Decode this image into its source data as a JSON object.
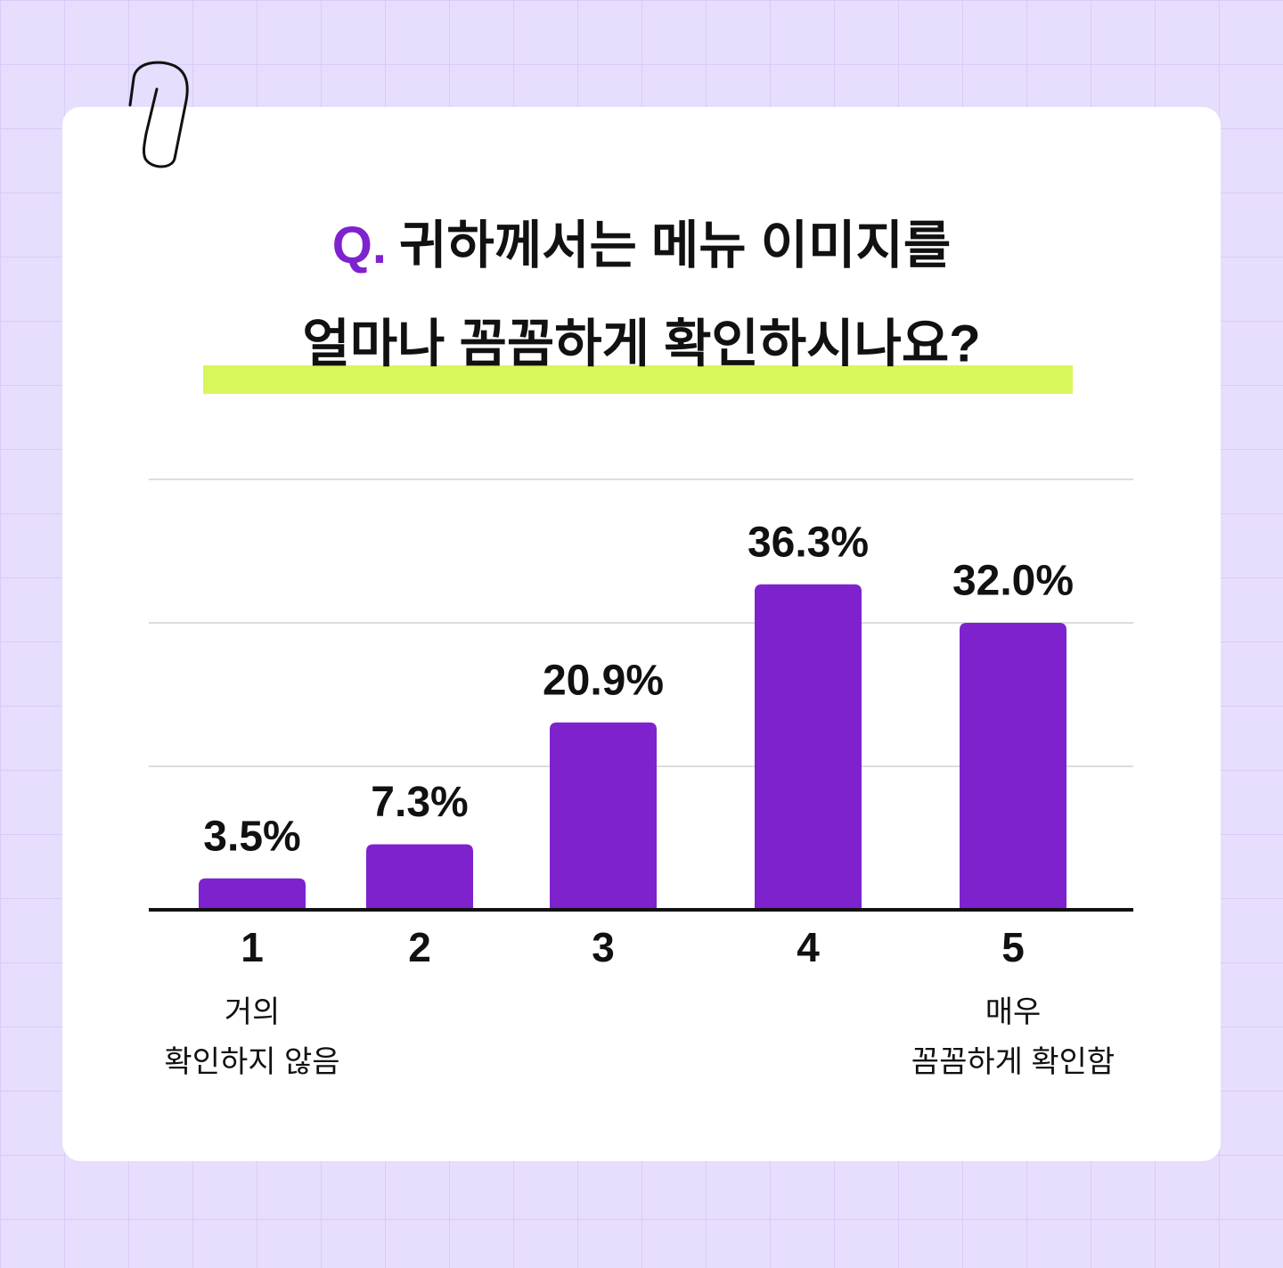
{
  "chart_data": {
    "type": "bar",
    "title_marker": "Q.",
    "title": [
      "귀하께서는 메뉴 이미지를",
      "얼마나 꼼꼼하게 확인하시나요?"
    ],
    "categories": [
      "1",
      "2",
      "3",
      "4",
      "5"
    ],
    "category_notes": [
      [
        "거의",
        "확인하지 않음"
      ],
      null,
      null,
      null,
      [
        "매우",
        "꼼꼼하게 확인함"
      ]
    ],
    "values": [
      3.5,
      7.3,
      20.9,
      36.3,
      32.0
    ],
    "value_labels": [
      "3.5%",
      "7.3%",
      "20.9%",
      "36.3%",
      "32.0%"
    ],
    "color": "#7e22ce",
    "ylim": [
      0,
      48
    ],
    "yticks": [
      0,
      16,
      32,
      48
    ],
    "grid": true
  }
}
